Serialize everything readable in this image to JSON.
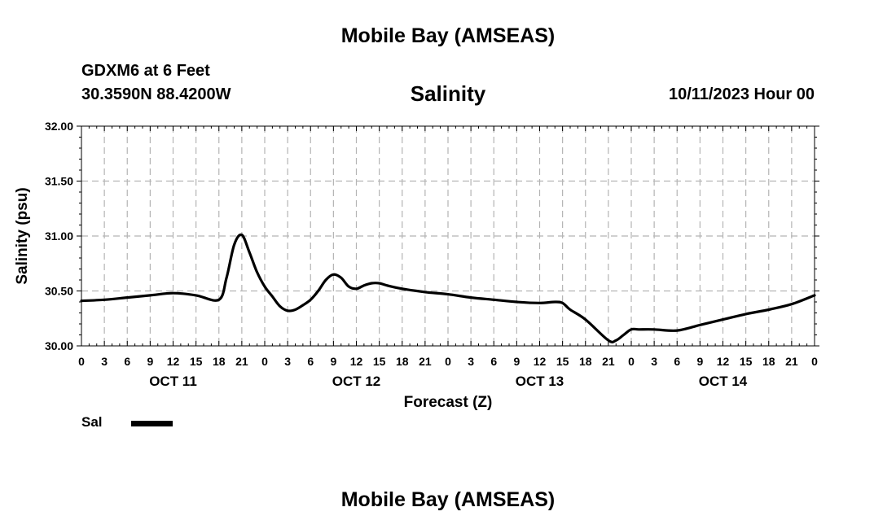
{
  "header": {
    "top_title": "Mobile Bay (AMSEAS)",
    "station": "GDXM6 at 6 Feet",
    "coords": "30.3590N  88.4200W",
    "run_time": "10/11/2023 Hour 00",
    "bottom_title": "Mobile Bay (AMSEAS)"
  },
  "chart_data": {
    "type": "line",
    "title": "Salinity",
    "xlabel": "Forecast (Z)",
    "ylabel": "Salinity (psu)",
    "ylim": [
      30.0,
      32.0
    ],
    "yticks": [
      "30.00",
      "30.50",
      "31.00",
      "31.50",
      "32.00"
    ],
    "xlim_hours": [
      0,
      96
    ],
    "xtick_labels": [
      "0",
      "3",
      "6",
      "9",
      "12",
      "15",
      "18",
      "21",
      "0",
      "3",
      "6",
      "9",
      "12",
      "15",
      "18",
      "21",
      "0",
      "3",
      "6",
      "9",
      "12",
      "15",
      "18",
      "21",
      "0",
      "3",
      "6",
      "9",
      "12",
      "15",
      "18",
      "21",
      "0"
    ],
    "day_labels": [
      "OCT 11",
      "OCT 12",
      "OCT 13",
      "OCT 14"
    ],
    "grid": true,
    "legend": [
      {
        "label": "Sal",
        "position": "bottom-left"
      }
    ],
    "series": [
      {
        "name": "Sal",
        "x": [
          0,
          3,
          6,
          9,
          12,
          15,
          18,
          19,
          20,
          21,
          22,
          23,
          24,
          25,
          26,
          27,
          28,
          29,
          30,
          31,
          32,
          33,
          34,
          35,
          36,
          37,
          38,
          39,
          40,
          42,
          45,
          48,
          51,
          54,
          57,
          60,
          62,
          63,
          64,
          66,
          69,
          70,
          71,
          72,
          73,
          75,
          78,
          81,
          84,
          87,
          90,
          93,
          96
        ],
        "values": [
          30.41,
          30.42,
          30.44,
          30.46,
          30.48,
          30.46,
          30.42,
          30.62,
          30.92,
          31.01,
          30.85,
          30.67,
          30.54,
          30.45,
          30.36,
          30.32,
          30.33,
          30.37,
          30.42,
          30.5,
          30.6,
          30.65,
          30.62,
          30.54,
          30.52,
          30.55,
          30.57,
          30.57,
          30.55,
          30.52,
          30.49,
          30.47,
          30.44,
          30.42,
          30.4,
          30.39,
          30.4,
          30.39,
          30.33,
          30.24,
          30.05,
          30.05,
          30.1,
          30.15,
          30.15,
          30.15,
          30.14,
          30.19,
          30.24,
          30.29,
          30.33,
          30.38,
          30.46
        ]
      }
    ]
  }
}
